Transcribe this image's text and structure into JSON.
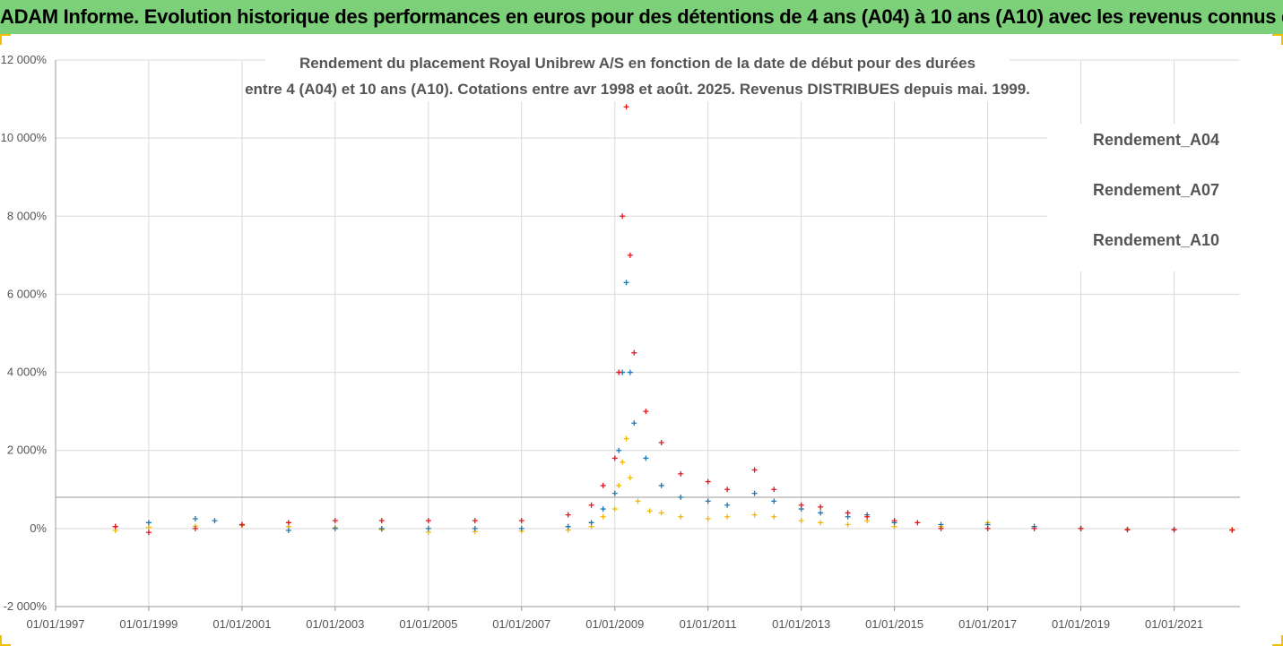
{
  "banner": {
    "text": "ADAM Informe. Evolution historique des performances en euros pour des détentions de 4 ans (A04) à 10 ans (A10) avec les revenus connus distribués"
  },
  "chart_data": {
    "type": "scatter",
    "title_line1": "Rendement du placement Royal Unibrew A/S en fonction de la date de début pour des durées",
    "title_line2": "entre 4 (A04) et 10 ans (A10). Cotations entre avr 1998 et août. 2025. Revenus DISTRIBUES depuis mai. 1999.",
    "ylim": [
      -2000,
      12000
    ],
    "xlim": [
      "1997-01-01",
      "2022-06-01"
    ],
    "y_ticks": [
      -2000,
      0,
      2000,
      4000,
      6000,
      8000,
      10000,
      12000
    ],
    "y_tick_labels": [
      "-2 000%",
      "0%",
      "2 000%",
      "4 000%",
      "6 000%",
      "8 000%",
      "10 000%",
      "12 000%"
    ],
    "x_tick_labels": [
      "01/01/1997",
      "01/01/1999",
      "01/01/2001",
      "01/01/2003",
      "01/01/2005",
      "01/01/2007",
      "01/01/2009",
      "01/01/2011",
      "01/01/2013",
      "01/01/2015",
      "01/01/2017",
      "01/01/2019",
      "01/01/2021"
    ],
    "reference_line": 800,
    "grid": "vertical and horizontal",
    "legend_position": "top-right",
    "marker": "+",
    "series": [
      {
        "name": "Rendement_A04",
        "color": "#f5b800",
        "points": [
          [
            "1998-04-15",
            -50
          ],
          [
            "1999-01-01",
            30
          ],
          [
            "2000-01-01",
            60
          ],
          [
            "2001-01-01",
            80
          ],
          [
            "2002-01-01",
            50
          ],
          [
            "2003-01-01",
            20
          ],
          [
            "2004-01-01",
            -30
          ],
          [
            "2005-01-01",
            -90
          ],
          [
            "2006-01-01",
            -80
          ],
          [
            "2007-01-01",
            -70
          ],
          [
            "2008-01-01",
            -40
          ],
          [
            "2008-07-01",
            50
          ],
          [
            "2008-10-01",
            300
          ],
          [
            "2009-01-01",
            500
          ],
          [
            "2009-02-01",
            1100
          ],
          [
            "2009-03-01",
            1700
          ],
          [
            "2009-04-01",
            2300
          ],
          [
            "2009-05-01",
            1300
          ],
          [
            "2009-07-01",
            700
          ],
          [
            "2009-10-01",
            450
          ],
          [
            "2010-01-01",
            400
          ],
          [
            "2010-06-01",
            300
          ],
          [
            "2011-01-01",
            250
          ],
          [
            "2011-06-01",
            300
          ],
          [
            "2012-01-01",
            350
          ],
          [
            "2012-06-01",
            300
          ],
          [
            "2013-01-01",
            200
          ],
          [
            "2013-06-01",
            150
          ],
          [
            "2014-01-01",
            100
          ],
          [
            "2014-06-01",
            200
          ],
          [
            "2015-01-01",
            50
          ],
          [
            "2016-01-01",
            50
          ],
          [
            "2017-01-01",
            150
          ],
          [
            "2018-01-01",
            50
          ],
          [
            "2019-01-01",
            0
          ],
          [
            "2020-01-01",
            -20
          ],
          [
            "2021-01-01",
            -30
          ],
          [
            "2022-04-01",
            -30
          ]
        ]
      },
      {
        "name": "Rendement_A07",
        "color": "#1f77b4",
        "points": [
          [
            "1998-04-15",
            50
          ],
          [
            "1999-01-01",
            150
          ],
          [
            "2000-01-01",
            250
          ],
          [
            "2000-06-01",
            200
          ],
          [
            "2001-01-01",
            100
          ],
          [
            "2002-01-01",
            -50
          ],
          [
            "2003-01-01",
            0
          ],
          [
            "2004-01-01",
            0
          ],
          [
            "2005-01-01",
            0
          ],
          [
            "2006-01-01",
            0
          ],
          [
            "2007-01-01",
            0
          ],
          [
            "2008-01-01",
            50
          ],
          [
            "2008-07-01",
            150
          ],
          [
            "2008-10-01",
            500
          ],
          [
            "2009-01-01",
            900
          ],
          [
            "2009-02-01",
            2000
          ],
          [
            "2009-03-01",
            4000
          ],
          [
            "2009-04-01",
            6300
          ],
          [
            "2009-05-01",
            4000
          ],
          [
            "2009-06-01",
            2700
          ],
          [
            "2009-09-01",
            1800
          ],
          [
            "2010-01-01",
            1100
          ],
          [
            "2010-06-01",
            800
          ],
          [
            "2011-01-01",
            700
          ],
          [
            "2011-06-01",
            600
          ],
          [
            "2012-01-01",
            900
          ],
          [
            "2012-06-01",
            700
          ],
          [
            "2013-01-01",
            500
          ],
          [
            "2013-06-01",
            400
          ],
          [
            "2014-01-01",
            300
          ],
          [
            "2014-06-01",
            350
          ],
          [
            "2015-01-01",
            150
          ],
          [
            "2016-01-01",
            100
          ],
          [
            "2017-01-01",
            100
          ],
          [
            "2018-01-01",
            50
          ],
          [
            "2019-01-01",
            0
          ],
          [
            "2020-01-01",
            -30
          ],
          [
            "2021-01-01",
            -30
          ],
          [
            "2022-04-01",
            -40
          ]
        ]
      },
      {
        "name": "Rendement_A10",
        "color": "#e8141c",
        "points": [
          [
            "1998-04-15",
            50
          ],
          [
            "1999-01-01",
            -100
          ],
          [
            "2000-01-01",
            0
          ],
          [
            "2001-01-01",
            100
          ],
          [
            "2002-01-01",
            150
          ],
          [
            "2003-01-01",
            200
          ],
          [
            "2004-01-01",
            200
          ],
          [
            "2005-01-01",
            200
          ],
          [
            "2006-01-01",
            200
          ],
          [
            "2007-01-01",
            200
          ],
          [
            "2008-01-01",
            350
          ],
          [
            "2008-07-01",
            600
          ],
          [
            "2008-10-01",
            1100
          ],
          [
            "2009-01-01",
            1800
          ],
          [
            "2009-02-01",
            4000
          ],
          [
            "2009-03-01",
            8000
          ],
          [
            "2009-04-01",
            10800
          ],
          [
            "2009-05-01",
            7000
          ],
          [
            "2009-06-01",
            4500
          ],
          [
            "2009-09-01",
            3000
          ],
          [
            "2010-01-01",
            2200
          ],
          [
            "2010-06-01",
            1400
          ],
          [
            "2011-01-01",
            1200
          ],
          [
            "2011-06-01",
            1000
          ],
          [
            "2012-01-01",
            1500
          ],
          [
            "2012-06-01",
            1000
          ],
          [
            "2013-01-01",
            600
          ],
          [
            "2013-06-01",
            550
          ],
          [
            "2014-01-01",
            400
          ],
          [
            "2014-06-01",
            300
          ],
          [
            "2015-01-01",
            200
          ],
          [
            "2015-07-01",
            150
          ],
          [
            "2016-01-01",
            0
          ],
          [
            "2017-01-01",
            0
          ],
          [
            "2018-01-01",
            0
          ],
          [
            "2019-01-01",
            0
          ],
          [
            "2020-01-01",
            -30
          ],
          [
            "2021-01-01",
            -30
          ],
          [
            "2022-04-01",
            -40
          ]
        ]
      }
    ]
  }
}
